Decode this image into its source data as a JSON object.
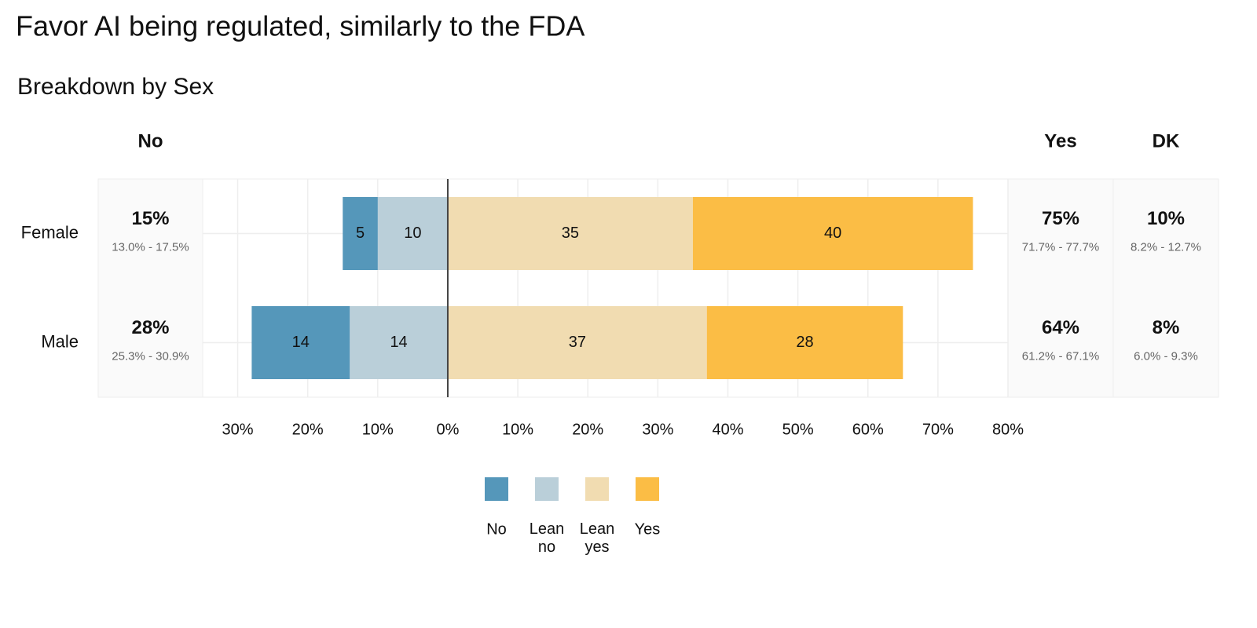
{
  "chart_data": {
    "type": "diverging_bar",
    "title": "Favor AI being regulated, similarly to the FDA",
    "subtitle": "Breakdown by Sex",
    "categories": [
      "Female",
      "Male"
    ],
    "series": [
      {
        "name": "No",
        "color": "#5597ba",
        "direction": "left",
        "values": [
          5,
          14
        ]
      },
      {
        "name": "Lean no",
        "color": "#bacfd9",
        "direction": "left",
        "values": [
          10,
          14
        ]
      },
      {
        "name": "Lean yes",
        "color": "#f1dcb1",
        "direction": "right",
        "values": [
          35,
          37
        ]
      },
      {
        "name": "Yes",
        "color": "#fbbd45",
        "direction": "right",
        "values": [
          40,
          28
        ]
      }
    ],
    "xlim": [
      -35,
      80
    ],
    "xticks": [
      {
        "value": -30,
        "label": "30%"
      },
      {
        "value": -20,
        "label": "20%"
      },
      {
        "value": -10,
        "label": "10%"
      },
      {
        "value": 0,
        "label": "0%"
      },
      {
        "value": 10,
        "label": "10%"
      },
      {
        "value": 20,
        "label": "20%"
      },
      {
        "value": 30,
        "label": "30%"
      },
      {
        "value": 40,
        "label": "40%"
      },
      {
        "value": 50,
        "label": "50%"
      },
      {
        "value": 60,
        "label": "60%"
      },
      {
        "value": 70,
        "label": "70%"
      },
      {
        "value": 80,
        "label": "80%"
      }
    ],
    "grid": true,
    "legend": "bottom",
    "side_panels": [
      {
        "header": "No",
        "position": "left",
        "rows": [
          {
            "value": "15%",
            "range": "13.0% - 17.5%"
          },
          {
            "value": "28%",
            "range": "25.3% - 30.9%"
          }
        ]
      },
      {
        "header": "Yes",
        "position": "right",
        "rows": [
          {
            "value": "75%",
            "range": "71.7% - 77.7%"
          },
          {
            "value": "64%",
            "range": "61.2% - 67.1%"
          }
        ]
      },
      {
        "header": "DK",
        "position": "right",
        "rows": [
          {
            "value": "10%",
            "range": "8.2% - 12.7%"
          },
          {
            "value": "8%",
            "range": "6.0% - 9.3%"
          }
        ]
      }
    ]
  }
}
